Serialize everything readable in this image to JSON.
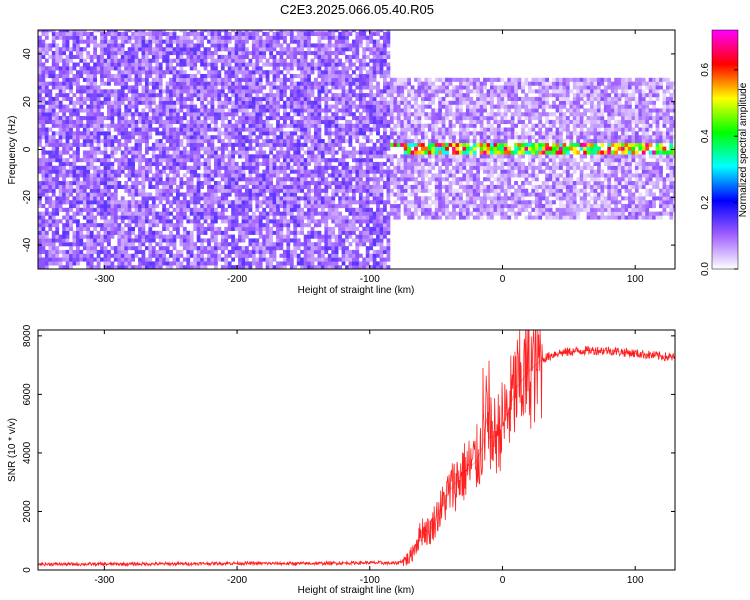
{
  "title": "C2E3.2025.066.05.40.R05",
  "chart_data": [
    {
      "type": "heatmap",
      "xlabel": "Height of straight line (km)",
      "ylabel": "Frequency (Hz)",
      "xlim": [
        -350,
        130
      ],
      "ylim": [
        -50,
        50
      ],
      "xticks": [
        -300,
        -200,
        -100,
        0,
        100
      ],
      "yticks": [
        -40,
        -20,
        0,
        20,
        40
      ],
      "regions": [
        {
          "name": "",
          "x_range": [
            -350,
            -85
          ],
          "y_range": [
            -50,
            50
          ],
          "amplitude_range": [
            0.05,
            0.15
          ]
        },
        {
          "name": "",
          "x_range": [
            -85,
            130
          ],
          "y_range": [
            -30,
            30
          ],
          "amplitude_range": [
            0.02,
            0.12
          ]
        },
        {
          "name": "",
          "x_range": [
            -85,
            130
          ],
          "y_range": [
            -2,
            2
          ],
          "amplitude_range": [
            0.3,
            0.7
          ]
        }
      ],
      "colorbar": {
        "label": "Normalized spectral amplitude",
        "ticks": [
          0.0,
          0.2,
          0.4,
          0.6
        ],
        "range": [
          0,
          0.72
        ],
        "colors": [
          "#ffffff",
          "#a060ff",
          "#0000ff",
          "#00ffff",
          "#00ff00",
          "#ffff00",
          "#ff0000",
          "#ff00ff"
        ]
      }
    },
    {
      "type": "line",
      "xlabel": "Height of straight line (km)",
      "ylabel": "SNR (10 * v/v)",
      "xlim": [
        -350,
        130
      ],
      "ylim": [
        0,
        8200
      ],
      "xticks": [
        -300,
        -200,
        -100,
        0,
        100
      ],
      "yticks": [
        0,
        2000,
        4000,
        6000,
        8000
      ],
      "series": [
        {
          "name": "",
          "color": "#ff0000",
          "x": [
            -350,
            -300,
            -250,
            -200,
            -150,
            -100,
            -80,
            -70,
            -65,
            -60,
            -55,
            -50,
            -45,
            -40,
            -35,
            -30,
            -25,
            -20,
            -15,
            -12,
            -10,
            -5,
            0,
            5,
            10,
            15,
            20,
            25,
            30,
            40,
            50,
            60,
            70,
            80,
            90,
            100,
            110,
            120,
            130
          ],
          "y": [
            200,
            200,
            210,
            230,
            220,
            250,
            230,
            400,
            900,
            1400,
            1300,
            1800,
            2200,
            2700,
            3000,
            3300,
            3500,
            3700,
            4200,
            5200,
            4500,
            4600,
            5000,
            5500,
            6200,
            6500,
            6800,
            7000,
            7200,
            7400,
            7450,
            7500,
            7500,
            7500,
            7450,
            7400,
            7350,
            7300,
            7250
          ]
        }
      ]
    }
  ]
}
